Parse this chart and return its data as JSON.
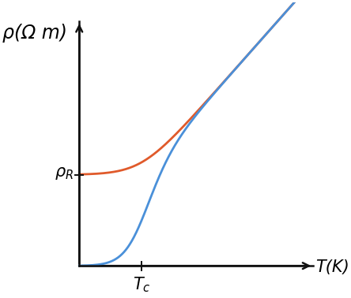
{
  "background_color": "#ffffff",
  "ylabel": "ρ(Ω m)",
  "xlabel": "T(K)",
  "blue_color": "#4a90d9",
  "red_color": "#e05a2b",
  "axis_color": "#111111",
  "Tc": 0.28,
  "rho_R": 0.38,
  "slope": 1.05,
  "k_blue": 18,
  "k_red": 14,
  "ylabel_fontsize": 17,
  "xlabel_fontsize": 15,
  "label_fontsize": 15,
  "lw": 2.0
}
